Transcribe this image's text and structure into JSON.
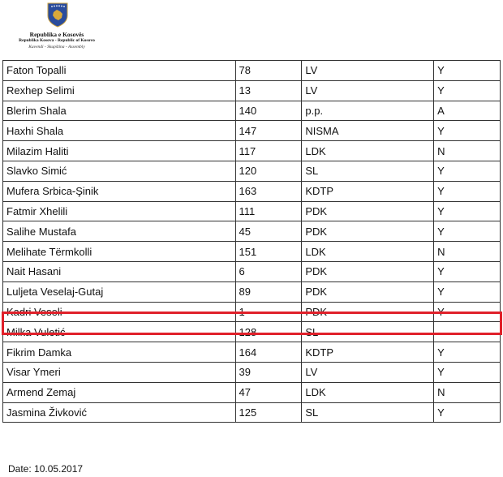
{
  "header": {
    "line1": "Republika e Kosovës",
    "line2": "Republika Kosova - Republic of Kosovo",
    "line3": "Kuvendi - Skupština - Assembly",
    "emblem_icon": "kosovo-coat-of-arms",
    "colors": {
      "emblem_blue": "#2a4c9c",
      "emblem_gold": "#d9a93a"
    }
  },
  "rows": [
    {
      "name": "Faton Topalli",
      "number": "78",
      "party": "LV",
      "vote": "Y"
    },
    {
      "name": "Rexhep Selimi",
      "number": "13",
      "party": "LV",
      "vote": "Y"
    },
    {
      "name": "Blerim Shala",
      "number": "140",
      "party": "p.p.",
      "vote": "A"
    },
    {
      "name": "Haxhi Shala",
      "number": "147",
      "party": "NISMA",
      "vote": "Y"
    },
    {
      "name": "Milazim Haliti",
      "number": "117",
      "party": "LDK",
      "vote": "N"
    },
    {
      "name": "Slavko Simić",
      "number": "120",
      "party": "SL",
      "vote": "Y"
    },
    {
      "name": "Mufera Srbica-Şinik",
      "number": "163",
      "party": "KDTP",
      "vote": "Y"
    },
    {
      "name": "Fatmir Xhelili",
      "number": "111",
      "party": "PDK",
      "vote": "Y"
    },
    {
      "name": "Salihe Mustafa",
      "number": "45",
      "party": "PDK",
      "vote": "Y"
    },
    {
      "name": "Melihate Tërmkolli",
      "number": "151",
      "party": "LDK",
      "vote": "N"
    },
    {
      "name": "Nait Hasani",
      "number": "6",
      "party": "PDK",
      "vote": "Y"
    },
    {
      "name": "Luljeta Veselaj-Gutaj",
      "number": "89",
      "party": "PDK",
      "vote": "Y"
    },
    {
      "name": "Kadri Veseli",
      "number": "1",
      "party": "PDK",
      "vote": "Y"
    },
    {
      "name": "Milka Vuletić",
      "number": "128",
      "party": "SL",
      "vote": "-"
    },
    {
      "name": "Fikrim Damka",
      "number": "164",
      "party": "KDTP",
      "vote": "Y"
    },
    {
      "name": "Visar Ymeri",
      "number": "39",
      "party": "LV",
      "vote": "Y"
    },
    {
      "name": "Armend Zemaj",
      "number": "47",
      "party": "LDK",
      "vote": "N"
    },
    {
      "name": "Jasmina Živković",
      "number": "125",
      "party": "SL",
      "vote": "Y"
    }
  ],
  "highlighted_row": "Kadri Veseli",
  "highlight_color": "#e0202a",
  "date": "Date: 10.05.2017"
}
